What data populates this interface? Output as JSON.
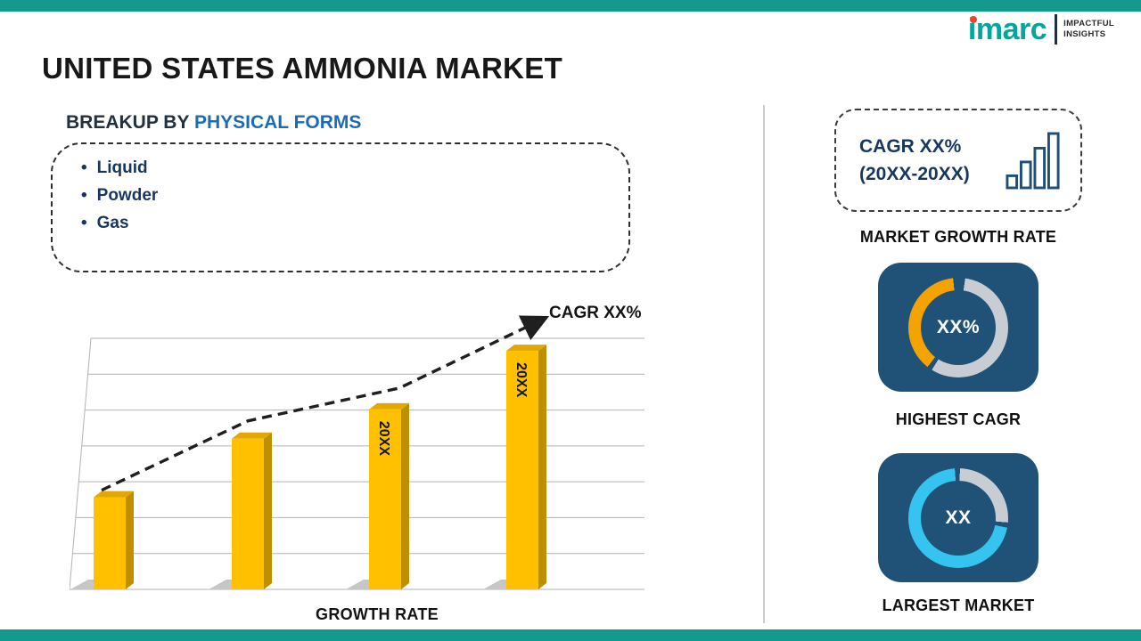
{
  "colors": {
    "teal_bar": "#149a8d",
    "navy_text": "#17375e",
    "blue_highlight": "#1c6cb5",
    "card_navy": "#1f5276",
    "ring_gray": "#c8cdd4",
    "accent_orange": "#f4a300",
    "accent_cyan": "#35c4f0",
    "bar_yellow": "#ffc000",
    "bar_yellow_side": "#bf8f00",
    "bar_yellow_top": "#e2a800",
    "trend_line": "#1f1f1f"
  },
  "logo": {
    "brand": "imarc",
    "tagline_line1": "IMPACTFUL",
    "tagline_line2": "INSIGHTS"
  },
  "header": {
    "title": "UNITED STATES AMMONIA MARKET"
  },
  "breakup": {
    "heading_prefix": "BREAKUP BY",
    "heading_highlight": "PHYSICAL FORMS",
    "items": [
      "Liquid",
      "Powder",
      "Gas"
    ]
  },
  "chart_data": {
    "type": "bar",
    "title": "",
    "xlabel": "GROWTH RATE",
    "ylabel": "",
    "categories": [
      "",
      "",
      "20XX",
      "20XX"
    ],
    "values": [
      2.2,
      3.6,
      4.3,
      5.7
    ],
    "ylim": [
      0,
      6
    ],
    "grid": true,
    "gridline_count": 8,
    "bar_labels": [
      "",
      "",
      "20XX",
      "20XX"
    ],
    "trend_annotation": "CAGR XX%",
    "trend_style": "dashed-arrow",
    "legend": "none"
  },
  "right_panel": {
    "growth_box": {
      "line1": "CAGR XX%",
      "line2": "(20XX-20XX)"
    },
    "market_growth_label": "MARKET GROWTH RATE",
    "highest_cagr": {
      "value": "XX%",
      "label": "HIGHEST CAGR",
      "ring": {
        "segments": [
          {
            "color": "#c8cdd4",
            "from": 8,
            "to": 212
          },
          {
            "color": "#f4a300",
            "from": 218,
            "to": 354
          }
        ]
      }
    },
    "largest_market": {
      "value": "XX",
      "label": "LARGEST MARKET",
      "ring": {
        "segments": [
          {
            "color": "#c8cdd4",
            "from": 2,
            "to": 95
          },
          {
            "color": "#35c4f0",
            "from": 101,
            "to": 356
          }
        ]
      }
    }
  }
}
